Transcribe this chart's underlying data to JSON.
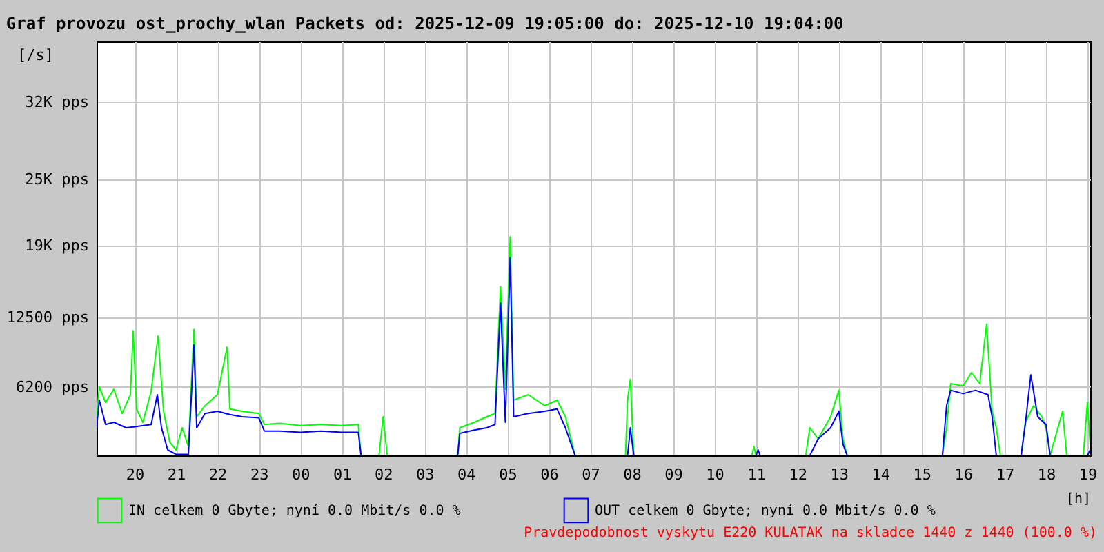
{
  "chart_data": {
    "type": "line",
    "title": "Graf provozu ost_prochy_wlan Packets od: 2025-12-09 19:05:00 do: 2025-12-10 19:04:00",
    "xlabel": "[h]",
    "ylabel": "[/s]",
    "xlim": [
      "2025-12-09T19:05",
      "2025-12-10T19:04"
    ],
    "ylim": [
      0,
      37500
    ],
    "xticks": [
      {
        "value": "2025-12-09T20:00",
        "label": "20"
      },
      {
        "value": "2025-12-09T21:00",
        "label": "21"
      },
      {
        "value": "2025-12-09T22:00",
        "label": "22"
      },
      {
        "value": "2025-12-09T23:00",
        "label": "23"
      },
      {
        "value": "2025-12-10T00:00",
        "label": "00"
      },
      {
        "value": "2025-12-10T01:00",
        "label": "01"
      },
      {
        "value": "2025-12-10T02:00",
        "label": "02"
      },
      {
        "value": "2025-12-10T03:00",
        "label": "03"
      },
      {
        "value": "2025-12-10T04:00",
        "label": "04"
      },
      {
        "value": "2025-12-10T05:00",
        "label": "05"
      },
      {
        "value": "2025-12-10T06:00",
        "label": "06"
      },
      {
        "value": "2025-12-10T07:00",
        "label": "07"
      },
      {
        "value": "2025-12-10T08:00",
        "label": "08"
      },
      {
        "value": "2025-12-10T09:00",
        "label": "09"
      },
      {
        "value": "2025-12-10T10:00",
        "label": "10"
      },
      {
        "value": "2025-12-10T11:00",
        "label": "11"
      },
      {
        "value": "2025-12-10T12:00",
        "label": "12"
      },
      {
        "value": "2025-12-10T13:00",
        "label": "13"
      },
      {
        "value": "2025-12-10T14:00",
        "label": "14"
      },
      {
        "value": "2025-12-10T15:00",
        "label": "15"
      },
      {
        "value": "2025-12-10T16:00",
        "label": "16"
      },
      {
        "value": "2025-12-10T17:00",
        "label": "17"
      },
      {
        "value": "2025-12-10T18:00",
        "label": "18"
      },
      {
        "value": "2025-12-10T19:00",
        "label": "19"
      }
    ],
    "yticks": [
      {
        "value": 6200,
        "label": "6200 pps"
      },
      {
        "value": 12500,
        "label": "12500 pps"
      },
      {
        "value": 19000,
        "label": "19K pps"
      },
      {
        "value": 25000,
        "label": "25K pps"
      },
      {
        "value": 32000,
        "label": "32K pps"
      }
    ],
    "grid": true,
    "legend": "bottom",
    "line_style": "solid",
    "annotations": [
      "Pravdepodobnost vyskytu E220 KULATAK na skladce 1440 z 1440 (100.0 %)"
    ],
    "series": [
      {
        "name": "IN celkem 0 Gbyte; nyní   0.0 Mbit/s 0.0 %",
        "color": "#00ff00",
        "x": [
          "2025-12-09T19:05",
          "2025-12-09T19:09",
          "2025-12-09T19:18",
          "2025-12-09T19:30",
          "2025-12-09T19:42",
          "2025-12-09T19:54",
          "2025-12-09T19:58",
          "2025-12-09T20:03",
          "2025-12-09T20:12",
          "2025-12-09T20:24",
          "2025-12-09T20:34",
          "2025-12-09T20:42",
          "2025-12-09T20:51",
          "2025-12-09T21:00",
          "2025-12-09T21:09",
          "2025-12-09T21:18",
          "2025-12-09T21:26",
          "2025-12-09T21:30",
          "2025-12-09T21:42",
          "2025-12-09T22:00",
          "2025-12-09T22:14",
          "2025-12-09T22:18",
          "2025-12-09T22:36",
          "2025-12-09T23:00",
          "2025-12-09T23:08",
          "2025-12-09T23:30",
          "2025-12-10T00:00",
          "2025-12-10T00:30",
          "2025-12-10T01:00",
          "2025-12-10T01:24",
          "2025-12-10T01:28",
          "2025-12-10T01:54",
          "2025-12-10T02:00",
          "2025-12-10T02:06",
          "2025-12-10T03:48",
          "2025-12-10T03:51",
          "2025-12-10T04:12",
          "2025-12-10T04:30",
          "2025-12-10T04:42",
          "2025-12-10T04:50",
          "2025-12-10T04:57",
          "2025-12-10T05:04",
          "2025-12-10T05:09",
          "2025-12-10T05:30",
          "2025-12-10T05:54",
          "2025-12-10T06:12",
          "2025-12-10T06:24",
          "2025-12-10T06:38",
          "2025-12-10T07:51",
          "2025-12-10T07:54",
          "2025-12-10T07:58",
          "2025-12-10T08:03",
          "2025-12-10T10:54",
          "2025-12-10T10:57",
          "2025-12-10T11:00",
          "2025-12-10T12:12",
          "2025-12-10T12:18",
          "2025-12-10T12:30",
          "2025-12-10T12:48",
          "2025-12-10T13:00",
          "2025-12-10T13:06",
          "2025-12-10T13:12",
          "2025-12-10T15:30",
          "2025-12-10T15:36",
          "2025-12-10T15:42",
          "2025-12-10T16:00",
          "2025-12-10T16:12",
          "2025-12-10T16:24",
          "2025-12-10T16:34",
          "2025-12-10T16:42",
          "2025-12-10T16:48",
          "2025-12-10T16:54",
          "2025-12-10T17:24",
          "2025-12-10T17:30",
          "2025-12-10T17:42",
          "2025-12-10T17:54",
          "2025-12-10T18:00",
          "2025-12-10T18:06",
          "2025-12-10T18:24",
          "2025-12-10T18:30",
          "2025-12-10T18:54",
          "2025-12-10T19:00",
          "2025-12-10T19:04"
        ],
        "values": [
          3500,
          6200,
          4800,
          6000,
          3800,
          5500,
          11300,
          4200,
          3000,
          5800,
          10800,
          4000,
          1200,
          500,
          2500,
          800,
          11400,
          3500,
          4500,
          5500,
          9800,
          4200,
          4000,
          3800,
          2800,
          2900,
          2700,
          2800,
          2700,
          2800,
          0,
          0,
          3500,
          0,
          0,
          2500,
          3000,
          3500,
          3800,
          15300,
          6000,
          19800,
          5000,
          5500,
          4500,
          5000,
          3500,
          0,
          0,
          5000,
          6900,
          0,
          0,
          800,
          0,
          0,
          2500,
          1500,
          3500,
          5900,
          1500,
          0,
          0,
          2500,
          6500,
          6300,
          7500,
          6500,
          11900,
          4000,
          2500,
          0,
          0,
          3000,
          4500,
          3500,
          2500,
          0,
          4000,
          0,
          0,
          4800,
          1000
        ]
      },
      {
        "name": "OUT celkem 0 Gbyte; nyní   0.0 Mbit/s 0.0 %",
        "color": "#0000ff",
        "x": [
          "2025-12-09T19:05",
          "2025-12-09T19:09",
          "2025-12-09T19:18",
          "2025-12-09T19:30",
          "2025-12-09T19:48",
          "2025-12-09T20:00",
          "2025-12-09T20:24",
          "2025-12-09T20:33",
          "2025-12-09T20:39",
          "2025-12-09T20:48",
          "2025-12-09T21:00",
          "2025-12-09T21:18",
          "2025-12-09T21:26",
          "2025-12-09T21:30",
          "2025-12-09T21:42",
          "2025-12-09T22:00",
          "2025-12-09T22:18",
          "2025-12-09T22:36",
          "2025-12-09T23:00",
          "2025-12-09T23:08",
          "2025-12-09T23:30",
          "2025-12-10T00:00",
          "2025-12-10T00:30",
          "2025-12-10T01:00",
          "2025-12-10T01:24",
          "2025-12-10T01:28",
          "2025-12-10T03:48",
          "2025-12-10T03:51",
          "2025-12-10T04:12",
          "2025-12-10T04:30",
          "2025-12-10T04:42",
          "2025-12-10T04:50",
          "2025-12-10T04:57",
          "2025-12-10T05:04",
          "2025-12-10T05:09",
          "2025-12-10T05:30",
          "2025-12-10T05:54",
          "2025-12-10T06:12",
          "2025-12-10T06:24",
          "2025-12-10T06:38",
          "2025-12-10T07:54",
          "2025-12-10T07:58",
          "2025-12-10T08:03",
          "2025-12-10T11:00",
          "2025-12-10T11:03",
          "2025-12-10T11:06",
          "2025-12-10T12:18",
          "2025-12-10T12:30",
          "2025-12-10T12:48",
          "2025-12-10T13:00",
          "2025-12-10T13:06",
          "2025-12-10T13:12",
          "2025-12-10T15:30",
          "2025-12-10T15:36",
          "2025-12-10T15:42",
          "2025-12-10T16:00",
          "2025-12-10T16:18",
          "2025-12-10T16:36",
          "2025-12-10T16:42",
          "2025-12-10T16:48",
          "2025-12-10T17:24",
          "2025-12-10T17:30",
          "2025-12-10T17:38",
          "2025-12-10T17:48",
          "2025-12-10T18:00",
          "2025-12-10T18:06",
          "2025-12-10T19:00",
          "2025-12-10T19:04"
        ],
        "values": [
          2500,
          5000,
          2800,
          3000,
          2500,
          2600,
          2800,
          5500,
          2500,
          500,
          100,
          100,
          10000,
          2500,
          3800,
          4000,
          3700,
          3500,
          3400,
          2200,
          2200,
          2100,
          2200,
          2100,
          2100,
          0,
          0,
          2000,
          2300,
          2500,
          2800,
          13800,
          3000,
          17900,
          3500,
          3800,
          4000,
          4200,
          2500,
          0,
          0,
          2500,
          0,
          0,
          500,
          0,
          0,
          1500,
          2500,
          4000,
          1000,
          0,
          0,
          4500,
          5900,
          5600,
          5900,
          5500,
          3500,
          0,
          0,
          2800,
          7300,
          3500,
          2800,
          0,
          0,
          500
        ]
      }
    ]
  }
}
